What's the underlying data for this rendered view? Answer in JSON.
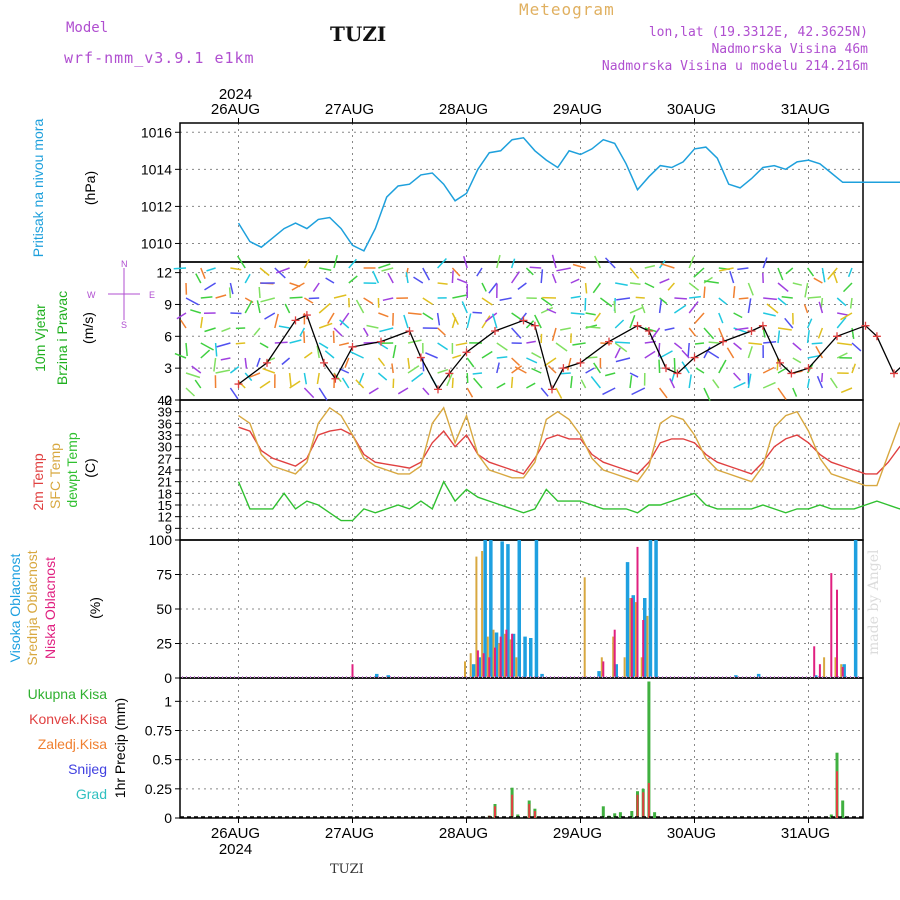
{
  "header": {
    "model_label": "Model",
    "model_name": "wrf-nmm_v3.9.1 e1km",
    "station": "TUZI",
    "title": "Meteogram",
    "coords": "lon,lat (19.3312E, 42.3625N)",
    "elevation": "Nadmorska Visina 46m",
    "model_elevation": "Nadmorska Visina u modelu 214.216m"
  },
  "footer": {
    "station": "TUZI",
    "watermark": "made by Angel"
  },
  "axis": {
    "year": "2024",
    "days": [
      "26AUG",
      "27AUG",
      "28AUG",
      "29AUG",
      "30AUG",
      "31AUG"
    ]
  },
  "panel_labels": {
    "pressure": {
      "name": "Pritisak na nivou mora",
      "unit": "(hPa)"
    },
    "wind": {
      "name1": "10m Vjetar",
      "name2": "Brzina i Pravac",
      "unit": "(m/s)",
      "compass_n": "N",
      "compass_e": "E",
      "compass_w": "W",
      "compass_s": "S"
    },
    "temp": {
      "t2m": "2m Temp",
      "sfc": "SFC Temp",
      "dew": "dewpt Temp",
      "unit": "(C)"
    },
    "cloud": {
      "high": "Visoka Oblacnost",
      "mid": "Srednja Oblacnost",
      "low": "Niska Oblacnost",
      "unit": "(%)"
    },
    "precip": {
      "total": "Ukupna Kisa",
      "conv": "Konvek.Kisa",
      "frz": "Zaledj.Kisa",
      "snow": "Snijeg",
      "grad": "Grad",
      "unit": "1hr Precip (mm)"
    }
  },
  "colors": {
    "pressure": "#1ea0dc",
    "t2m": "#e04040",
    "sfc": "#d8a840",
    "dew": "#30c030",
    "high_cloud": "#1ea0e0",
    "mid_cloud": "#d8a840",
    "low_cloud": "#e02080",
    "total": "#40b040",
    "conv": "#e04040",
    "frz": "#f08030",
    "snow": "#4040e0",
    "grad": "#30c0c0",
    "purple": "#b04fd0"
  },
  "chart_data": [
    {
      "type": "line",
      "name": "pressure",
      "ylim": [
        1009,
        1016.5
      ],
      "yticks": [
        1010,
        1012,
        1014,
        1016
      ],
      "x_days": [
        0,
        0.1,
        0.2,
        0.3,
        0.4,
        0.5,
        0.6,
        0.7,
        0.8,
        0.9,
        1.0,
        1.1,
        1.2,
        1.3,
        1.4,
        1.5,
        1.6,
        1.7,
        1.8,
        1.9,
        2.0,
        2.1,
        2.2,
        2.3,
        2.4,
        2.5,
        2.6,
        2.7,
        2.8,
        2.9,
        3.0,
        3.1,
        3.2,
        3.3,
        3.4,
        3.5,
        3.6,
        3.7,
        3.8,
        3.9,
        4.0,
        4.1,
        4.2,
        4.3,
        4.4,
        4.5,
        4.6,
        4.7,
        4.8,
        4.9,
        5.0,
        5.1,
        5.2,
        5.3,
        5.4,
        5.5,
        5.6,
        5.7,
        5.8,
        5.9,
        6.0
      ],
      "values": [
        1011.1,
        1010.1,
        1009.8,
        1010.3,
        1010.8,
        1011.1,
        1010.8,
        1011.3,
        1011.4,
        1010.8,
        1009.9,
        1009.6,
        1010.8,
        1012.5,
        1013.1,
        1013.2,
        1013.7,
        1013.8,
        1013.2,
        1012.3,
        1012.7,
        1014.0,
        1014.9,
        1015.0,
        1015.6,
        1015.7,
        1015.0,
        1014.5,
        1014.1,
        1015.0,
        1014.8,
        1015.1,
        1015.6,
        1015.4,
        1014.3,
        1012.9,
        1013.6,
        1014.2,
        1014.1,
        1014.4,
        1015.1,
        1015.2,
        1014.6,
        1013.2,
        1013.0,
        1013.5,
        1014.1,
        1014.2,
        1014.0,
        1014.4,
        1014.5,
        1014.3,
        1013.8,
        1013.3,
        1013.3,
        1013.3,
        1013.3,
        1013.3,
        1013.3,
        1013.3,
        1013.3
      ]
    },
    {
      "type": "line",
      "name": "wind",
      "ylim": [
        0,
        13
      ],
      "yticks": [
        0,
        3,
        6,
        9,
        12
      ],
      "x_days": [
        0,
        0.25,
        0.5,
        0.6,
        0.75,
        0.85,
        1.0,
        1.25,
        1.5,
        1.6,
        1.75,
        1.85,
        2.0,
        2.25,
        2.5,
        2.6,
        2.75,
        2.85,
        3.0,
        3.25,
        3.5,
        3.6,
        3.75,
        3.85,
        4.0,
        4.25,
        4.5,
        4.6,
        4.75,
        4.85,
        5.0,
        5.25,
        5.5,
        5.6,
        5.75,
        5.85,
        6.0
      ],
      "values": [
        1.5,
        3.5,
        7.5,
        8.0,
        3.5,
        2.0,
        5.0,
        5.5,
        6.5,
        4.0,
        1.0,
        2.5,
        4.5,
        6.5,
        7.5,
        7.0,
        1.0,
        3.0,
        3.5,
        5.5,
        7.0,
        6.5,
        3.0,
        2.5,
        4.0,
        5.5,
        6.5,
        7.0,
        3.5,
        2.5,
        3.0,
        6.0,
        7.0,
        6.0,
        2.5,
        3.5,
        3.0
      ]
    },
    {
      "type": "line",
      "name": "temperature",
      "ylim": [
        6,
        42
      ],
      "yticks": [
        9,
        12,
        15,
        18,
        21,
        24,
        27,
        30,
        33,
        36,
        39,
        42
      ],
      "x_days": [
        0,
        0.1,
        0.2,
        0.3,
        0.4,
        0.5,
        0.6,
        0.7,
        0.8,
        0.9,
        1.0,
        1.1,
        1.2,
        1.3,
        1.4,
        1.5,
        1.6,
        1.7,
        1.8,
        1.9,
        2.0,
        2.1,
        2.2,
        2.3,
        2.4,
        2.5,
        2.6,
        2.7,
        2.8,
        2.9,
        3.0,
        3.1,
        3.2,
        3.3,
        3.4,
        3.5,
        3.6,
        3.7,
        3.8,
        3.9,
        4.0,
        4.1,
        4.2,
        4.3,
        4.4,
        4.5,
        4.6,
        4.7,
        4.8,
        4.9,
        5.0,
        5.1,
        5.2,
        5.3,
        5.4,
        5.5,
        5.6,
        5.7,
        5.8,
        5.9,
        6.0
      ],
      "series": [
        {
          "name": "t2m",
          "values": [
            35,
            34,
            29,
            27,
            26,
            25,
            27,
            33,
            34,
            34.5,
            33,
            28,
            26,
            25.5,
            25,
            24.5,
            26,
            31,
            34,
            30,
            33,
            28,
            26,
            25,
            24,
            23,
            27,
            32,
            33,
            32,
            32,
            28,
            26,
            25,
            24,
            23,
            26,
            31,
            32,
            32,
            31,
            28,
            26,
            25,
            24,
            23,
            26,
            30,
            32,
            33,
            31,
            28,
            26,
            25,
            24,
            23,
            23,
            26,
            30,
            32,
            32
          ]
        },
        {
          "name": "sfc",
          "values": [
            38,
            36,
            28,
            25,
            24,
            23,
            26,
            36,
            40,
            38,
            33,
            27,
            25,
            24,
            23,
            23,
            25,
            36,
            40,
            31,
            38,
            28,
            24,
            23,
            22,
            22,
            26,
            37,
            39,
            37,
            33,
            27,
            24,
            23,
            22,
            21,
            25,
            36,
            38,
            37,
            33,
            27,
            24,
            23,
            22,
            21,
            25,
            35,
            38,
            39,
            34,
            27,
            23,
            22,
            21,
            20,
            20,
            28,
            36,
            39,
            38
          ]
        },
        {
          "name": "dew",
          "values": [
            21,
            14,
            14,
            14,
            18,
            14,
            16,
            15,
            13,
            11,
            11,
            14,
            13,
            14,
            15,
            14,
            16,
            14,
            21,
            16,
            19,
            17,
            16,
            15,
            14,
            13,
            14,
            19,
            16,
            16,
            16,
            15,
            14,
            14,
            14,
            13,
            15,
            15,
            16,
            17,
            18,
            15,
            14,
            14,
            14,
            14,
            15,
            14,
            13,
            14,
            14,
            15,
            14,
            14,
            14,
            15,
            16,
            15,
            14,
            15,
            17
          ]
        }
      ]
    },
    {
      "type": "bar",
      "name": "cloud",
      "ylim": [
        0,
        100
      ],
      "yticks": [
        0,
        25,
        50,
        75,
        100
      ],
      "series": [
        {
          "name": "high",
          "x_days": [
            1.2,
            1.3,
            2.05,
            2.1,
            2.15,
            2.2,
            2.25,
            2.3,
            2.35,
            2.4,
            2.45,
            2.5,
            2.55,
            2.6,
            2.65,
            3.15,
            3.3,
            3.4,
            3.45,
            3.55,
            3.6,
            3.65,
            4.35,
            4.55,
            5.05,
            5.3,
            5.4
          ],
          "values": [
            3,
            2,
            10,
            15,
            100,
            100,
            33,
            99,
            97,
            32,
            100,
            30,
            29,
            100,
            3,
            5,
            10,
            84,
            60,
            58,
            100,
            100,
            2,
            3,
            2,
            10,
            100
          ]
        },
        {
          "name": "mid",
          "x_days": [
            2.0,
            2.05,
            2.1,
            2.15,
            2.2,
            2.25,
            2.3,
            2.35,
            2.4,
            2.45,
            3.05,
            3.2,
            3.3,
            3.4,
            3.45,
            3.5,
            3.55,
            3.6,
            5.15,
            5.25,
            5.3
          ],
          "values": [
            12,
            18,
            88,
            92,
            30,
            35,
            25,
            32,
            28,
            15,
            73,
            15,
            30,
            15,
            58,
            55,
            15,
            45,
            15,
            15,
            10
          ]
        },
        {
          "name": "low",
          "x_days": [
            1.0,
            2.1,
            2.15,
            2.2,
            2.25,
            2.3,
            2.35,
            2.4,
            3.2,
            3.3,
            3.45,
            3.5,
            3.55,
            5.05,
            5.1,
            5.2,
            5.25,
            5.3
          ],
          "values": [
            10,
            20,
            18,
            15,
            22,
            30,
            35,
            32,
            12,
            35,
            58,
            95,
            42,
            23,
            10,
            76,
            64,
            8
          ]
        }
      ]
    },
    {
      "type": "bar",
      "name": "precip",
      "ylim": [
        0,
        1.2
      ],
      "yticks": [
        0,
        0.25,
        0.5,
        0.75,
        1
      ],
      "series": [
        {
          "name": "total",
          "x_days": [
            2.2,
            2.25,
            2.4,
            2.45,
            2.55,
            2.6,
            3.2,
            3.25,
            3.3,
            3.35,
            3.45,
            3.5,
            3.55,
            3.6,
            3.65,
            5.2,
            5.25,
            5.3
          ],
          "values": [
            0.02,
            0.12,
            0.26,
            0.03,
            0.15,
            0.08,
            0.1,
            0.02,
            0.04,
            0.05,
            0.06,
            0.23,
            0.25,
            1.17,
            0.05,
            0.03,
            0.56,
            0.15
          ]
        },
        {
          "name": "conv",
          "x_days": [
            2.2,
            2.25,
            2.4,
            2.55,
            2.6,
            3.5,
            3.55,
            3.6,
            5.25
          ],
          "values": [
            0.02,
            0.1,
            0.2,
            0.12,
            0.06,
            0.2,
            0.22,
            0.3,
            0.4
          ]
        }
      ]
    }
  ]
}
